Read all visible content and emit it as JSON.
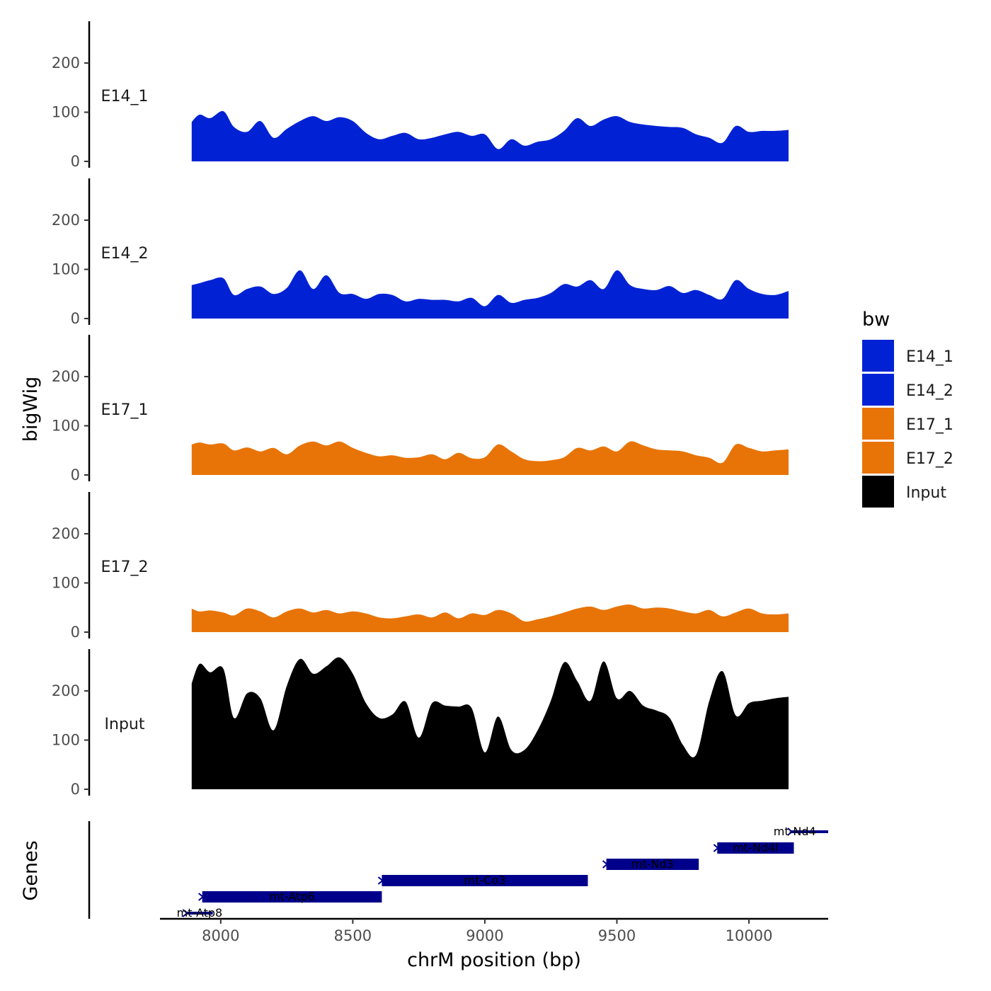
{
  "chart_data": {
    "type": "area",
    "xlabel": "chrM position (bp)",
    "ylabel": "bigWig",
    "genes_label": "Genes",
    "xlim": [
      7770,
      10300
    ],
    "ylim": [
      0,
      280
    ],
    "x_ticks": [
      8000,
      8500,
      9000,
      9500,
      10000
    ],
    "y_ticks": [
      0,
      100,
      200
    ],
    "grid": false,
    "legend": {
      "title": "bw",
      "position": "right",
      "items": [
        {
          "name": "E14_1",
          "color": "#0022D4"
        },
        {
          "name": "E14_2",
          "color": "#0022D4"
        },
        {
          "name": "E17_1",
          "color": "#E87407"
        },
        {
          "name": "E17_2",
          "color": "#E87407"
        },
        {
          "name": "Input",
          "color": "#000000"
        }
      ]
    },
    "x": [
      7890,
      7920,
      7960,
      8010,
      8050,
      8100,
      8150,
      8200,
      8250,
      8300,
      8350,
      8400,
      8450,
      8500,
      8550,
      8600,
      8650,
      8700,
      8750,
      8800,
      8850,
      8900,
      8950,
      9000,
      9050,
      9100,
      9150,
      9200,
      9250,
      9300,
      9350,
      9400,
      9450,
      9500,
      9550,
      9600,
      9650,
      9700,
      9750,
      9800,
      9850,
      9900,
      9950,
      10000,
      10050,
      10100,
      10150
    ],
    "series": [
      {
        "name": "E14_1",
        "color": "#0022D4",
        "values": [
          80,
          95,
          88,
          102,
          70,
          60,
          82,
          48,
          66,
          82,
          92,
          82,
          90,
          82,
          58,
          45,
          52,
          58,
          45,
          48,
          55,
          60,
          52,
          55,
          25,
          45,
          32,
          40,
          45,
          62,
          88,
          72,
          85,
          92,
          80,
          75,
          72,
          70,
          68,
          55,
          48,
          38,
          72,
          60,
          62,
          62,
          64
        ]
      },
      {
        "name": "E14_2",
        "color": "#0022D4",
        "values": [
          68,
          72,
          78,
          82,
          48,
          60,
          65,
          50,
          62,
          98,
          60,
          88,
          52,
          50,
          40,
          50,
          48,
          35,
          40,
          38,
          38,
          35,
          42,
          25,
          48,
          32,
          38,
          42,
          52,
          70,
          65,
          78,
          60,
          98,
          68,
          60,
          58,
          66,
          52,
          58,
          48,
          40,
          78,
          60,
          50,
          48,
          56
        ]
      },
      {
        "name": "E17_1",
        "color": "#E87407",
        "values": [
          62,
          66,
          62,
          64,
          50,
          56,
          48,
          55,
          42,
          60,
          68,
          60,
          68,
          55,
          45,
          38,
          40,
          35,
          36,
          42,
          32,
          45,
          34,
          36,
          62,
          48,
          32,
          28,
          30,
          36,
          55,
          50,
          58,
          48,
          68,
          60,
          52,
          50,
          48,
          40,
          35,
          25,
          62,
          55,
          48,
          50,
          52
        ]
      },
      {
        "name": "E17_2",
        "color": "#E87407",
        "values": [
          48,
          42,
          44,
          40,
          34,
          48,
          42,
          30,
          42,
          48,
          40,
          45,
          38,
          42,
          38,
          30,
          28,
          32,
          36,
          30,
          40,
          28,
          38,
          35,
          45,
          38,
          22,
          26,
          32,
          40,
          48,
          52,
          45,
          52,
          56,
          48,
          50,
          48,
          42,
          38,
          45,
          32,
          40,
          48,
          38,
          36,
          38
        ]
      },
      {
        "name": "Input",
        "color": "#000000",
        "values": [
          215,
          255,
          238,
          245,
          145,
          195,
          185,
          120,
          210,
          265,
          235,
          250,
          268,
          235,
          175,
          145,
          152,
          178,
          105,
          175,
          170,
          168,
          165,
          75,
          148,
          80,
          80,
          120,
          180,
          258,
          220,
          180,
          260,
          185,
          200,
          170,
          160,
          145,
          90,
          70,
          180,
          240,
          150,
          175,
          180,
          185,
          188
        ]
      }
    ],
    "genes": [
      {
        "name": "mt-Atp8",
        "start": 7870,
        "end": 7970,
        "row": 0
      },
      {
        "name": "mt-Atp6",
        "start": 7930,
        "end": 8610,
        "row": 1
      },
      {
        "name": "mt-Co3",
        "start": 8610,
        "end": 9390,
        "row": 2
      },
      {
        "name": "mt-Nd3",
        "start": 9460,
        "end": 9810,
        "row": 3
      },
      {
        "name": "mt-Nd4l",
        "start": 9880,
        "end": 10170,
        "row": 4
      },
      {
        "name": "mt-Nd4",
        "start": 10160,
        "end": 10300,
        "row": 5
      }
    ]
  }
}
